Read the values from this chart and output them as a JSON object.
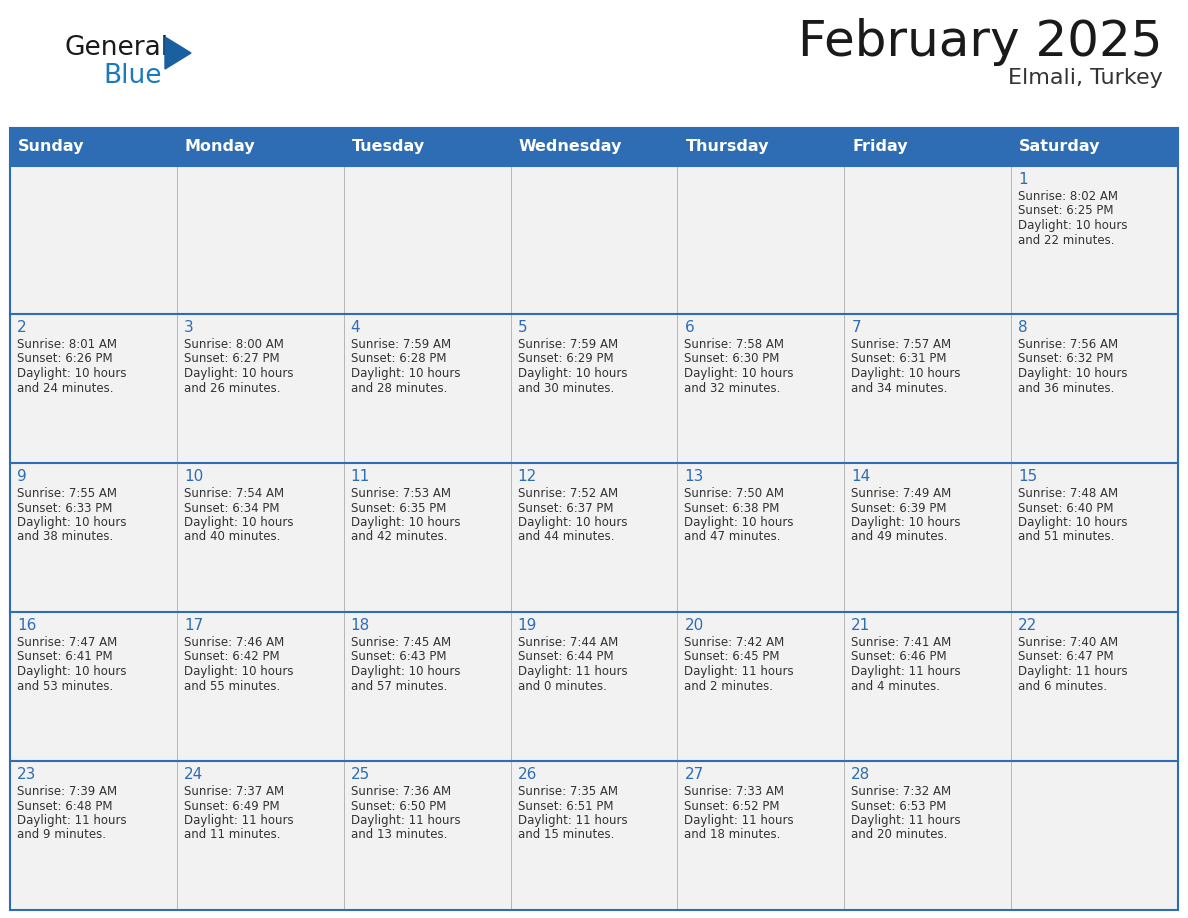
{
  "title": "February 2025",
  "subtitle": "Elmali, Turkey",
  "header_bg": "#2E6DB4",
  "header_text_color": "#FFFFFF",
  "cell_bg": "#FFFFFF",
  "border_color": "#2E6DB4",
  "row_sep_color": "#2E6DB4",
  "day_names": [
    "Sunday",
    "Monday",
    "Tuesday",
    "Wednesday",
    "Thursday",
    "Friday",
    "Saturday"
  ],
  "title_color": "#1a1a1a",
  "subtitle_color": "#333333",
  "date_color": "#2E6DB4",
  "text_color": "#333333",
  "logo_general_color": "#1a1a1a",
  "logo_blue_color": "#1a7abf",
  "logo_triangle_color": "#1a5fa0",
  "calendar_data": [
    [
      null,
      null,
      null,
      null,
      null,
      null,
      {
        "day": 1,
        "sunrise": "8:02 AM",
        "sunset": "6:25 PM",
        "daylight": "10 hours and 22 minutes"
      }
    ],
    [
      {
        "day": 2,
        "sunrise": "8:01 AM",
        "sunset": "6:26 PM",
        "daylight": "10 hours and 24 minutes"
      },
      {
        "day": 3,
        "sunrise": "8:00 AM",
        "sunset": "6:27 PM",
        "daylight": "10 hours and 26 minutes"
      },
      {
        "day": 4,
        "sunrise": "7:59 AM",
        "sunset": "6:28 PM",
        "daylight": "10 hours and 28 minutes"
      },
      {
        "day": 5,
        "sunrise": "7:59 AM",
        "sunset": "6:29 PM",
        "daylight": "10 hours and 30 minutes"
      },
      {
        "day": 6,
        "sunrise": "7:58 AM",
        "sunset": "6:30 PM",
        "daylight": "10 hours and 32 minutes"
      },
      {
        "day": 7,
        "sunrise": "7:57 AM",
        "sunset": "6:31 PM",
        "daylight": "10 hours and 34 minutes"
      },
      {
        "day": 8,
        "sunrise": "7:56 AM",
        "sunset": "6:32 PM",
        "daylight": "10 hours and 36 minutes"
      }
    ],
    [
      {
        "day": 9,
        "sunrise": "7:55 AM",
        "sunset": "6:33 PM",
        "daylight": "10 hours and 38 minutes"
      },
      {
        "day": 10,
        "sunrise": "7:54 AM",
        "sunset": "6:34 PM",
        "daylight": "10 hours and 40 minutes"
      },
      {
        "day": 11,
        "sunrise": "7:53 AM",
        "sunset": "6:35 PM",
        "daylight": "10 hours and 42 minutes"
      },
      {
        "day": 12,
        "sunrise": "7:52 AM",
        "sunset": "6:37 PM",
        "daylight": "10 hours and 44 minutes"
      },
      {
        "day": 13,
        "sunrise": "7:50 AM",
        "sunset": "6:38 PM",
        "daylight": "10 hours and 47 minutes"
      },
      {
        "day": 14,
        "sunrise": "7:49 AM",
        "sunset": "6:39 PM",
        "daylight": "10 hours and 49 minutes"
      },
      {
        "day": 15,
        "sunrise": "7:48 AM",
        "sunset": "6:40 PM",
        "daylight": "10 hours and 51 minutes"
      }
    ],
    [
      {
        "day": 16,
        "sunrise": "7:47 AM",
        "sunset": "6:41 PM",
        "daylight": "10 hours and 53 minutes"
      },
      {
        "day": 17,
        "sunrise": "7:46 AM",
        "sunset": "6:42 PM",
        "daylight": "10 hours and 55 minutes"
      },
      {
        "day": 18,
        "sunrise": "7:45 AM",
        "sunset": "6:43 PM",
        "daylight": "10 hours and 57 minutes"
      },
      {
        "day": 19,
        "sunrise": "7:44 AM",
        "sunset": "6:44 PM",
        "daylight": "11 hours and 0 minutes"
      },
      {
        "day": 20,
        "sunrise": "7:42 AM",
        "sunset": "6:45 PM",
        "daylight": "11 hours and 2 minutes"
      },
      {
        "day": 21,
        "sunrise": "7:41 AM",
        "sunset": "6:46 PM",
        "daylight": "11 hours and 4 minutes"
      },
      {
        "day": 22,
        "sunrise": "7:40 AM",
        "sunset": "6:47 PM",
        "daylight": "11 hours and 6 minutes"
      }
    ],
    [
      {
        "day": 23,
        "sunrise": "7:39 AM",
        "sunset": "6:48 PM",
        "daylight": "11 hours and 9 minutes"
      },
      {
        "day": 24,
        "sunrise": "7:37 AM",
        "sunset": "6:49 PM",
        "daylight": "11 hours and 11 minutes"
      },
      {
        "day": 25,
        "sunrise": "7:36 AM",
        "sunset": "6:50 PM",
        "daylight": "11 hours and 13 minutes"
      },
      {
        "day": 26,
        "sunrise": "7:35 AM",
        "sunset": "6:51 PM",
        "daylight": "11 hours and 15 minutes"
      },
      {
        "day": 27,
        "sunrise": "7:33 AM",
        "sunset": "6:52 PM",
        "daylight": "11 hours and 18 minutes"
      },
      {
        "day": 28,
        "sunrise": "7:32 AM",
        "sunset": "6:53 PM",
        "daylight": "11 hours and 20 minutes"
      },
      null
    ]
  ]
}
